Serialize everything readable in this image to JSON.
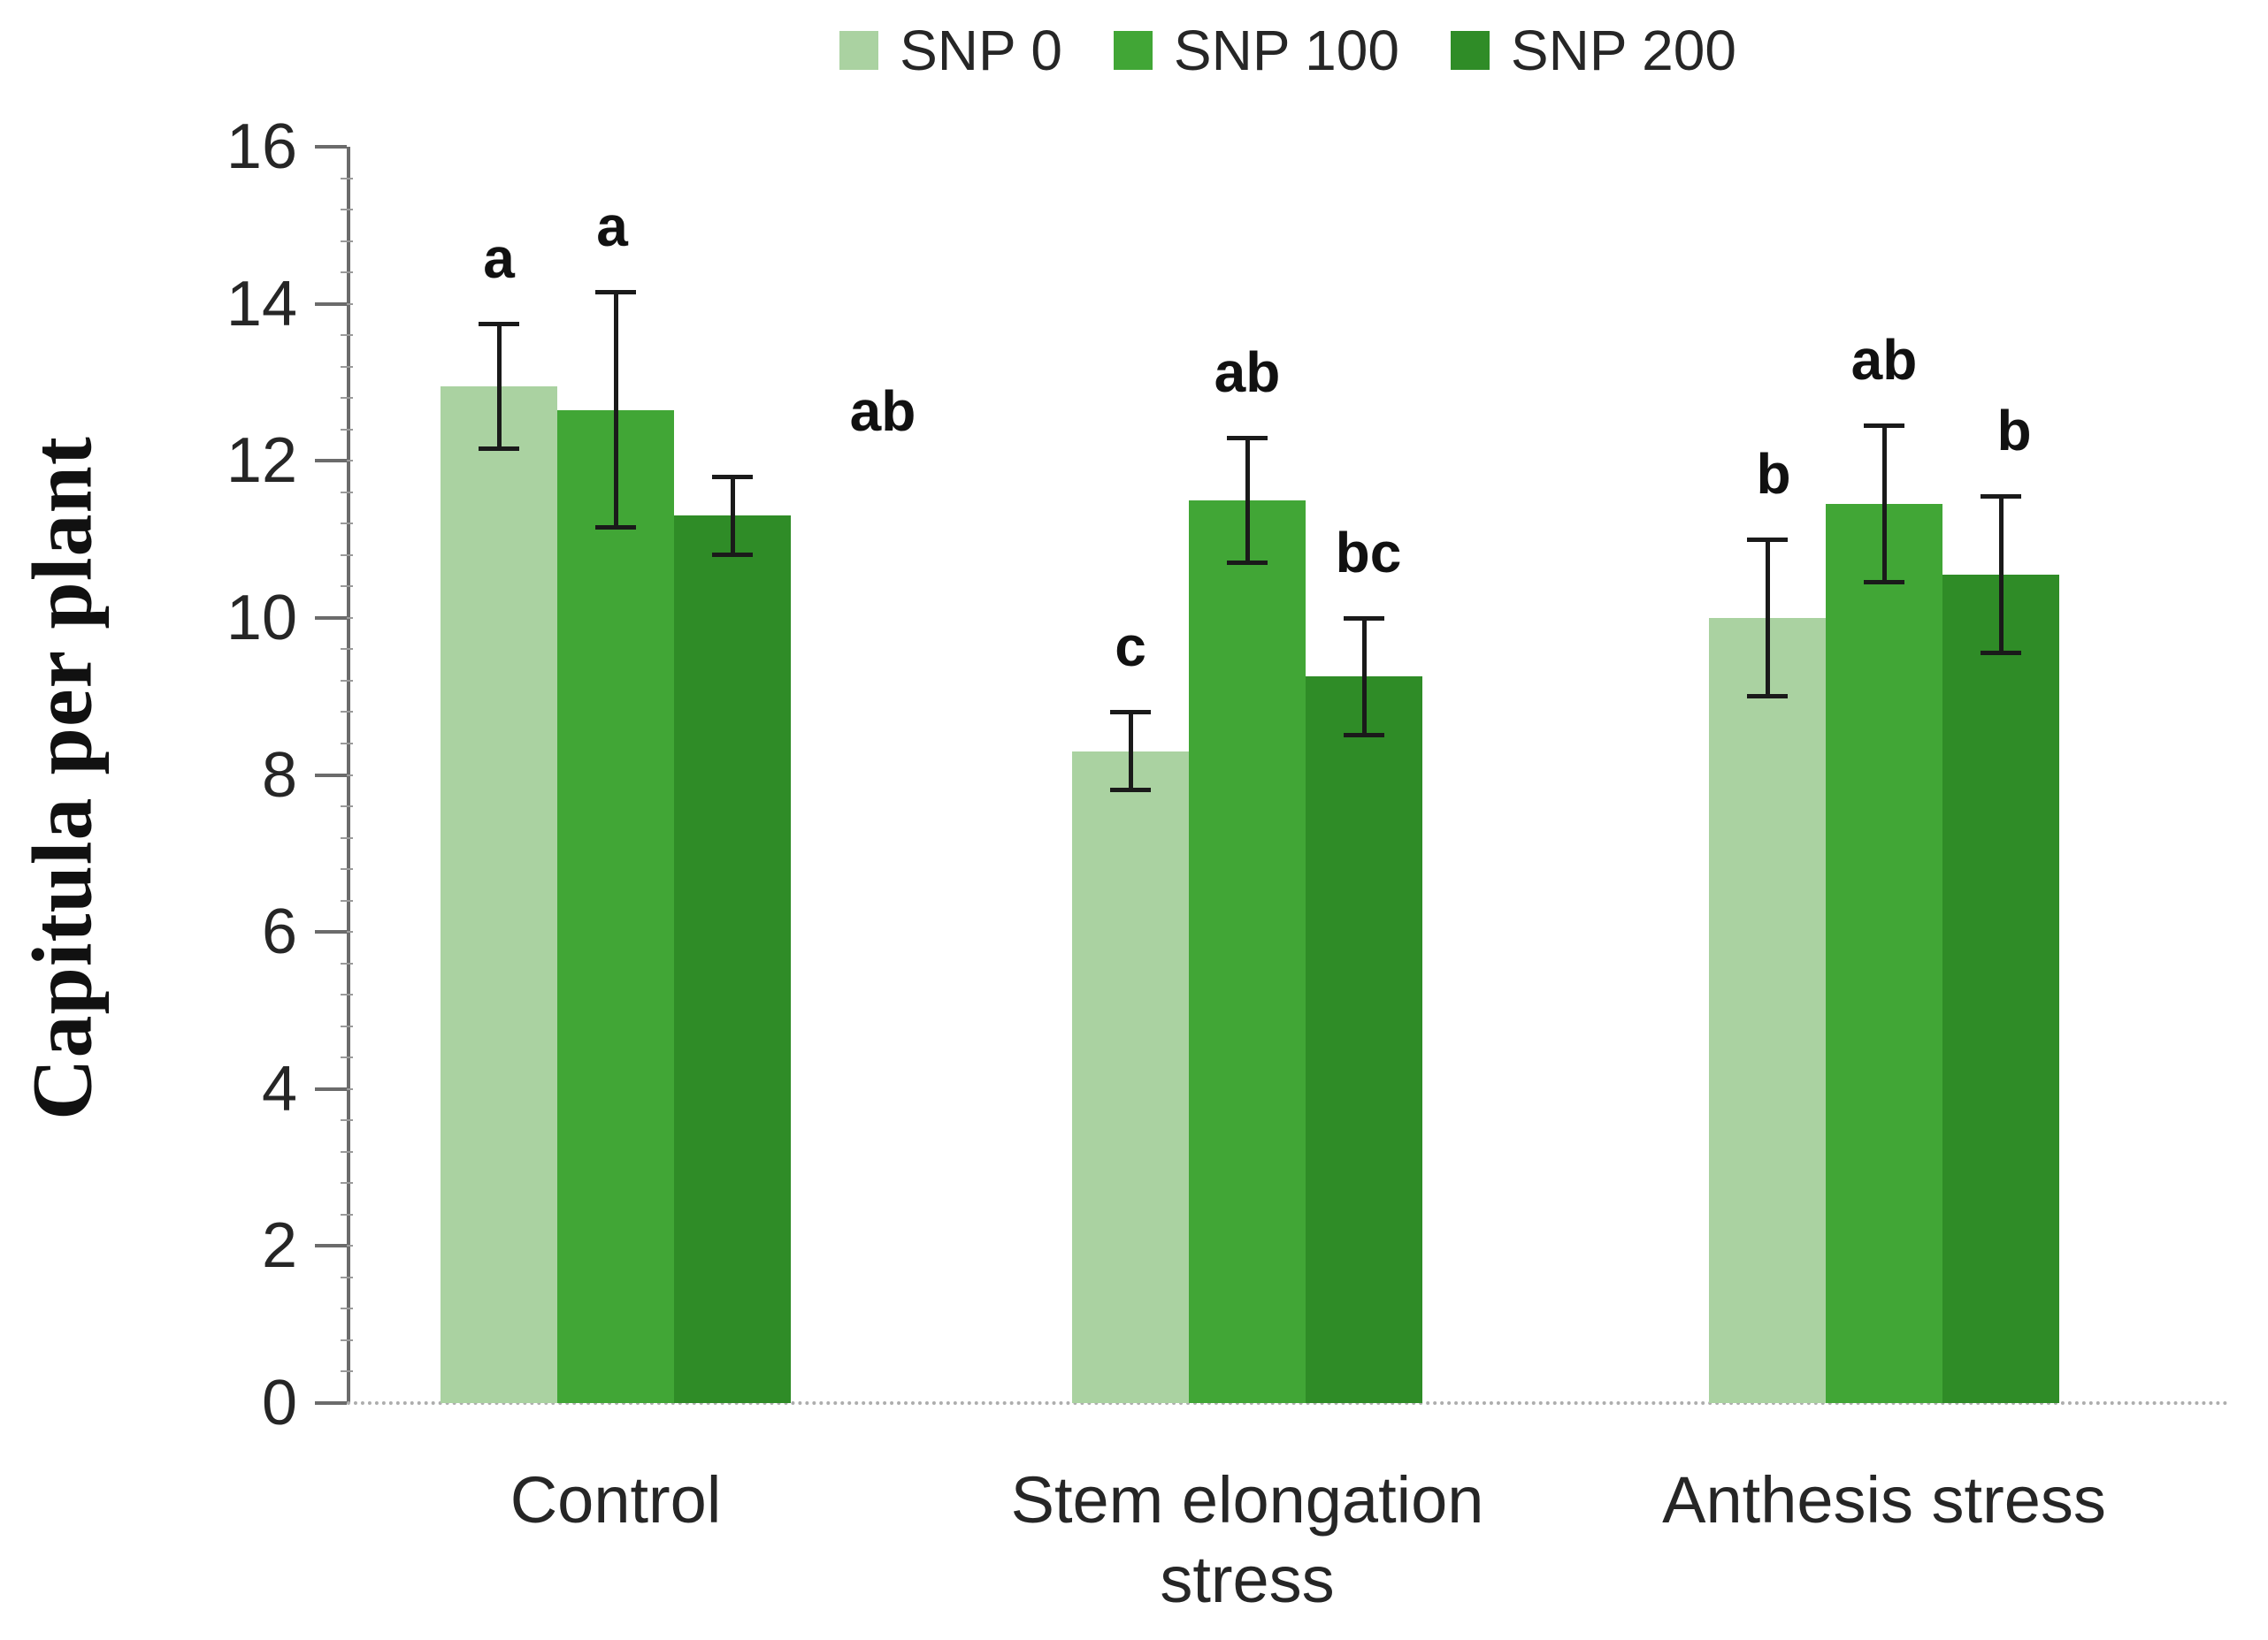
{
  "chart_data": {
    "type": "bar",
    "title": "",
    "ylabel": "Capitula per plant",
    "xlabel": "",
    "ylim": [
      0,
      16
    ],
    "y_ticks": [
      0,
      2,
      4,
      6,
      8,
      10,
      12,
      14,
      16
    ],
    "grid": false,
    "legend_position": "top",
    "error_bars": true,
    "categories": [
      {
        "name": "Control",
        "label_lines": [
          "Control"
        ]
      },
      {
        "name": "Stem elongation stress",
        "label_lines": [
          "Stem elongation",
          "stress"
        ]
      },
      {
        "name": "Anthesis stress",
        "label_lines": [
          "Anthesis stress"
        ]
      }
    ],
    "series": [
      {
        "name": "SNP 0",
        "color": "#aad2a1",
        "values": [
          12.95,
          8.3,
          10.0
        ],
        "errors": [
          0.8,
          0.5,
          1.0
        ],
        "letters": [
          "a",
          "c",
          "b"
        ]
      },
      {
        "name": "SNP 100",
        "color": "#41a636",
        "values": [
          12.65,
          11.5,
          11.45
        ],
        "errors": [
          1.5,
          0.8,
          1.0
        ],
        "letters": [
          "a",
          "ab",
          "ab"
        ]
      },
      {
        "name": "SNP 200",
        "color": "#2f8c27",
        "values": [
          11.3,
          9.25,
          10.55
        ],
        "errors": [
          0.5,
          0.75,
          1.0
        ],
        "letters": [
          "ab",
          "bc",
          "b"
        ]
      }
    ]
  }
}
